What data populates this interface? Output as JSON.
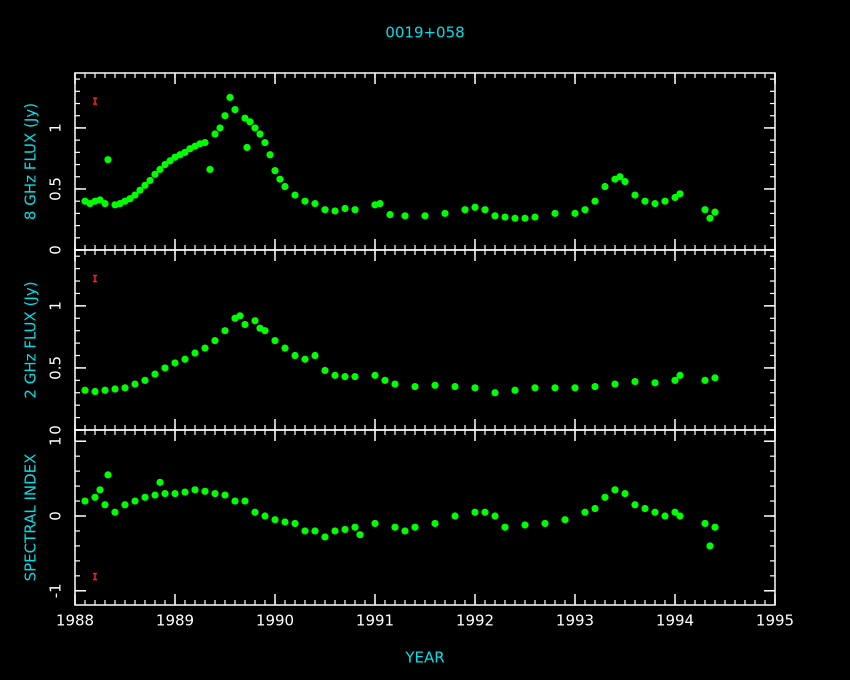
{
  "chart_data": {
    "title": "0019+058",
    "xlabel": "YEAR",
    "xlim": [
      1988,
      1995
    ],
    "xticks": [
      1988,
      1989,
      1990,
      1991,
      1992,
      1993,
      1994,
      1995
    ],
    "panels": [
      {
        "type": "scatter",
        "ylabel": "8 GHz FLUX (Jy)",
        "color": "#00ff00",
        "ylim": [
          0,
          1.45
        ],
        "yticks": [
          0,
          0.5,
          1
        ],
        "error_marker": {
          "x": 1988.2,
          "y": 1.22
        },
        "x": [
          1988.1,
          1988.15,
          1988.2,
          1988.25,
          1988.3,
          1988.33,
          1988.4,
          1988.45,
          1988.5,
          1988.55,
          1988.6,
          1988.65,
          1988.7,
          1988.75,
          1988.8,
          1988.85,
          1988.9,
          1988.95,
          1989.0,
          1989.05,
          1989.1,
          1989.15,
          1989.2,
          1989.25,
          1989.3,
          1989.35,
          1989.4,
          1989.45,
          1989.5,
          1989.55,
          1989.6,
          1989.7,
          1989.72,
          1989.75,
          1989.8,
          1989.85,
          1989.9,
          1989.95,
          1990.0,
          1990.05,
          1990.1,
          1990.2,
          1990.3,
          1990.4,
          1990.5,
          1990.6,
          1990.7,
          1990.8,
          1991.0,
          1991.05,
          1991.15,
          1991.3,
          1991.5,
          1991.7,
          1991.9,
          1992.0,
          1992.1,
          1992.2,
          1992.3,
          1992.4,
          1992.5,
          1992.6,
          1992.8,
          1993.0,
          1993.1,
          1993.2,
          1993.3,
          1993.4,
          1993.45,
          1993.5,
          1993.6,
          1993.7,
          1993.8,
          1993.9,
          1994.0,
          1994.05,
          1994.3,
          1994.35,
          1994.4
        ],
        "y": [
          0.4,
          0.38,
          0.4,
          0.41,
          0.38,
          0.74,
          0.37,
          0.38,
          0.4,
          0.42,
          0.45,
          0.49,
          0.53,
          0.57,
          0.62,
          0.66,
          0.7,
          0.73,
          0.76,
          0.78,
          0.8,
          0.83,
          0.85,
          0.87,
          0.88,
          0.66,
          0.95,
          1.0,
          1.1,
          1.25,
          1.15,
          1.08,
          0.84,
          1.05,
          1.0,
          0.95,
          0.88,
          0.78,
          0.65,
          0.58,
          0.52,
          0.45,
          0.4,
          0.38,
          0.33,
          0.32,
          0.34,
          0.33,
          0.37,
          0.38,
          0.29,
          0.28,
          0.28,
          0.3,
          0.33,
          0.35,
          0.33,
          0.28,
          0.27,
          0.26,
          0.26,
          0.27,
          0.3,
          0.3,
          0.33,
          0.4,
          0.52,
          0.58,
          0.6,
          0.56,
          0.45,
          0.4,
          0.38,
          0.4,
          0.43,
          0.46,
          0.33,
          0.26,
          0.31
        ]
      },
      {
        "type": "scatter",
        "ylabel": "2 GHz FLUX (Jy)",
        "color": "#00ff00",
        "ylim": [
          0,
          1.45
        ],
        "yticks": [
          0,
          0.5,
          1
        ],
        "error_marker": {
          "x": 1988.2,
          "y": 1.22
        },
        "x": [
          1988.1,
          1988.2,
          1988.3,
          1988.4,
          1988.5,
          1988.6,
          1988.7,
          1988.8,
          1988.9,
          1989.0,
          1989.1,
          1989.2,
          1989.3,
          1989.4,
          1989.5,
          1989.6,
          1989.65,
          1989.7,
          1989.8,
          1989.85,
          1989.9,
          1990.0,
          1990.1,
          1990.2,
          1990.3,
          1990.4,
          1990.5,
          1990.6,
          1990.7,
          1990.8,
          1991.0,
          1991.1,
          1991.2,
          1991.4,
          1991.6,
          1991.8,
          1992.0,
          1992.2,
          1992.4,
          1992.6,
          1992.8,
          1993.0,
          1993.2,
          1993.4,
          1993.6,
          1993.8,
          1994.0,
          1994.05,
          1994.3,
          1994.4
        ],
        "y": [
          0.32,
          0.31,
          0.32,
          0.33,
          0.34,
          0.37,
          0.4,
          0.45,
          0.5,
          0.54,
          0.57,
          0.62,
          0.66,
          0.72,
          0.8,
          0.9,
          0.92,
          0.85,
          0.88,
          0.82,
          0.8,
          0.72,
          0.66,
          0.6,
          0.57,
          0.6,
          0.48,
          0.44,
          0.43,
          0.43,
          0.44,
          0.4,
          0.37,
          0.35,
          0.36,
          0.35,
          0.34,
          0.3,
          0.32,
          0.34,
          0.34,
          0.34,
          0.35,
          0.37,
          0.39,
          0.38,
          0.4,
          0.44,
          0.4,
          0.42
        ]
      },
      {
        "type": "scatter",
        "ylabel": "SPECTRAL INDEX",
        "color": "#00ff00",
        "ylim": [
          -1.19,
          1.15
        ],
        "yticks": [
          -1,
          0,
          1
        ],
        "error_marker": {
          "x": 1988.2,
          "y": -0.81
        },
        "x": [
          1988.1,
          1988.2,
          1988.25,
          1988.3,
          1988.33,
          1988.4,
          1988.5,
          1988.6,
          1988.7,
          1988.8,
          1988.85,
          1988.9,
          1989.0,
          1989.1,
          1989.2,
          1989.3,
          1989.4,
          1989.5,
          1989.6,
          1989.7,
          1989.8,
          1989.9,
          1990.0,
          1990.1,
          1990.2,
          1990.3,
          1990.4,
          1990.5,
          1990.6,
          1990.7,
          1990.8,
          1990.85,
          1991.0,
          1991.2,
          1991.3,
          1991.4,
          1991.6,
          1991.8,
          1992.0,
          1992.1,
          1992.2,
          1992.3,
          1992.5,
          1992.7,
          1992.9,
          1993.1,
          1993.2,
          1993.3,
          1993.4,
          1993.5,
          1993.6,
          1993.7,
          1993.8,
          1993.9,
          1994.0,
          1994.05,
          1994.3,
          1994.35,
          1994.4
        ],
        "y": [
          0.2,
          0.25,
          0.35,
          0.15,
          0.55,
          0.05,
          0.15,
          0.2,
          0.25,
          0.28,
          0.45,
          0.3,
          0.3,
          0.32,
          0.35,
          0.33,
          0.3,
          0.28,
          0.2,
          0.2,
          0.05,
          0.0,
          -0.05,
          -0.08,
          -0.1,
          -0.2,
          -0.2,
          -0.28,
          -0.2,
          -0.18,
          -0.15,
          -0.25,
          -0.1,
          -0.15,
          -0.2,
          -0.15,
          -0.1,
          0.0,
          0.05,
          0.05,
          0.0,
          -0.15,
          -0.12,
          -0.1,
          -0.05,
          0.05,
          0.1,
          0.25,
          0.35,
          0.3,
          0.15,
          0.1,
          0.05,
          0.0,
          0.05,
          0.0,
          -0.1,
          -0.4,
          -0.15
        ]
      }
    ]
  }
}
